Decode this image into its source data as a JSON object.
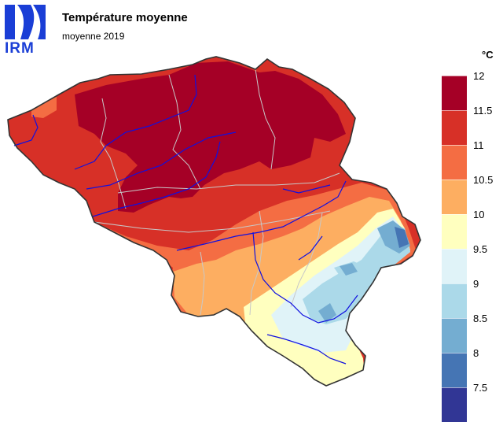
{
  "logo": {
    "text": "IRM"
  },
  "header": {
    "title": "Température moyenne",
    "subtitle": "moyenne 2019"
  },
  "legend": {
    "unit": "°C",
    "ticks": [
      "12",
      "11.5",
      "11",
      "10.5",
      "10",
      "9.5",
      "9",
      "8.5",
      "8",
      "7.5"
    ],
    "classes": [
      {
        "from": 11.5,
        "to": 12,
        "color": "#a50026"
      },
      {
        "from": 11,
        "to": 11.5,
        "color": "#d73027"
      },
      {
        "from": 10.5,
        "to": 11,
        "color": "#f46d43"
      },
      {
        "from": 10,
        "to": 10.5,
        "color": "#fdae61"
      },
      {
        "from": 9.5,
        "to": 10,
        "color": "#ffffbf"
      },
      {
        "from": 9,
        "to": 9.5,
        "color": "#e0f3f8"
      },
      {
        "from": 8.5,
        "to": 9,
        "color": "#abd9e9"
      },
      {
        "from": 8,
        "to": 8.5,
        "color": "#74add1"
      },
      {
        "from": 7.5,
        "to": 8,
        "color": "#4575b4"
      },
      {
        "from": 7,
        "to": 7.5,
        "color": "#313695"
      }
    ]
  }
}
